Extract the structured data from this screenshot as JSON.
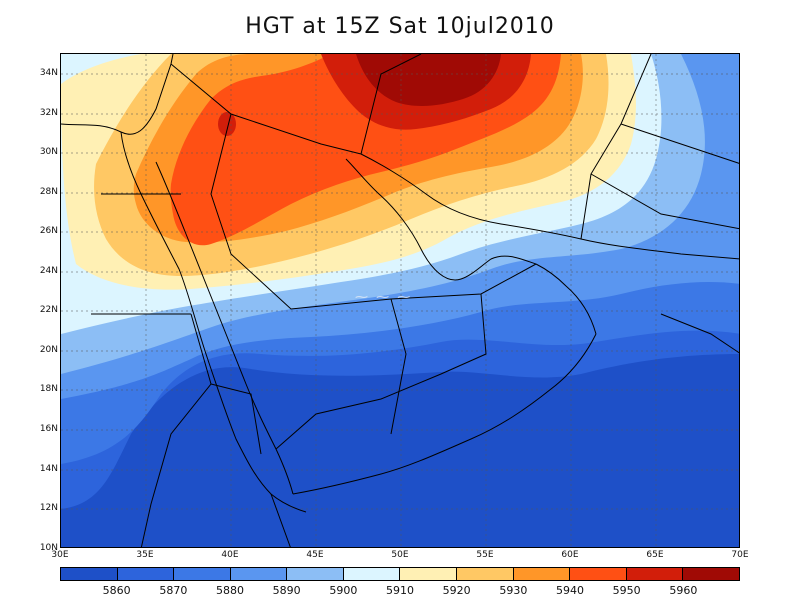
{
  "title": "HGT at 15Z Sat 10jul2010",
  "lat_labels": [
    "34N",
    "32N",
    "30N",
    "28N",
    "26N",
    "24N",
    "22N",
    "20N",
    "18N",
    "16N",
    "14N",
    "12N",
    "10N"
  ],
  "lon_labels": [
    "30E",
    "35E",
    "40E",
    "45E",
    "50E",
    "55E",
    "60E",
    "65E",
    "70E"
  ],
  "colorbar": {
    "levels": [
      "5860",
      "5870",
      "5880",
      "5890",
      "5900",
      "5910",
      "5920",
      "5930",
      "5940",
      "5950",
      "5960"
    ],
    "colors": [
      "#1e50c8",
      "#2d64dc",
      "#3c78e6",
      "#5a96f0",
      "#8cbef5",
      "#dcf5ff",
      "#fff0b4",
      "#ffc864",
      "#ff9628",
      "#ff5014",
      "#d21e0a",
      "#a00a05"
    ]
  },
  "colors": {
    "coast_border": "#000000",
    "grid": "#444444"
  }
}
